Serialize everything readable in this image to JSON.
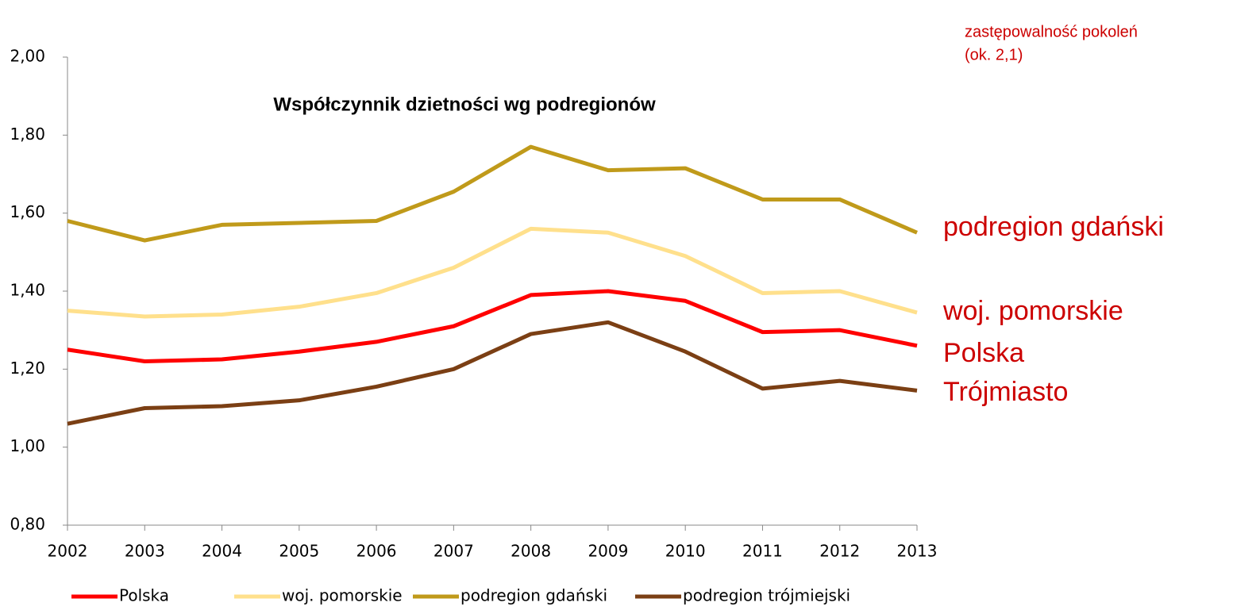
{
  "chart_data": {
    "type": "line",
    "title": "Współczynnik dzietności wg podregionów",
    "x": [
      2002,
      2003,
      2004,
      2005,
      2006,
      2007,
      2008,
      2009,
      2010,
      2011,
      2012,
      2013
    ],
    "xlim": [
      2002,
      2013
    ],
    "xticks": [
      2002,
      2003,
      2004,
      2005,
      2006,
      2007,
      2008,
      2009,
      2010,
      2011,
      2012,
      2013
    ],
    "ylim": [
      0.8,
      2.0
    ],
    "yticks": [
      {
        "value": 0.8,
        "label": "0,80"
      },
      {
        "value": 1.0,
        "label": "1,00"
      },
      {
        "value": 1.2,
        "label": "1,20"
      },
      {
        "value": 1.4,
        "label": "1,40"
      },
      {
        "value": 1.6,
        "label": "1,60"
      },
      {
        "value": 1.8,
        "label": "1,80"
      },
      {
        "value": 2.0,
        "label": "2,00"
      }
    ],
    "grid": false,
    "legend": "bottom",
    "series": [
      {
        "name": "Polska",
        "color": "#ff0000",
        "values": [
          1.25,
          1.22,
          1.225,
          1.245,
          1.27,
          1.31,
          1.39,
          1.4,
          1.375,
          1.295,
          1.3,
          1.26
        ]
      },
      {
        "name": "woj. pomorskie",
        "color": "#ffe08c",
        "values": [
          1.35,
          1.335,
          1.34,
          1.36,
          1.395,
          1.46,
          1.56,
          1.55,
          1.49,
          1.395,
          1.4,
          1.345
        ]
      },
      {
        "name": "podregion gdański",
        "color": "#c09a1a",
        "values": [
          1.58,
          1.53,
          1.57,
          1.575,
          1.58,
          1.655,
          1.77,
          1.71,
          1.715,
          1.635,
          1.635,
          1.55
        ]
      },
      {
        "name": "podregion trójmiejski",
        "color": "#7b3f14",
        "values": [
          1.06,
          1.1,
          1.105,
          1.12,
          1.155,
          1.2,
          1.29,
          1.32,
          1.245,
          1.15,
          1.17,
          1.145
        ]
      }
    ],
    "annotations": [
      "zastępowalność pokoleń",
      "(ok. 2,1)",
      "podregion gdański",
      "woj. pomorskie",
      "Polska",
      "Trójmiasto"
    ]
  }
}
